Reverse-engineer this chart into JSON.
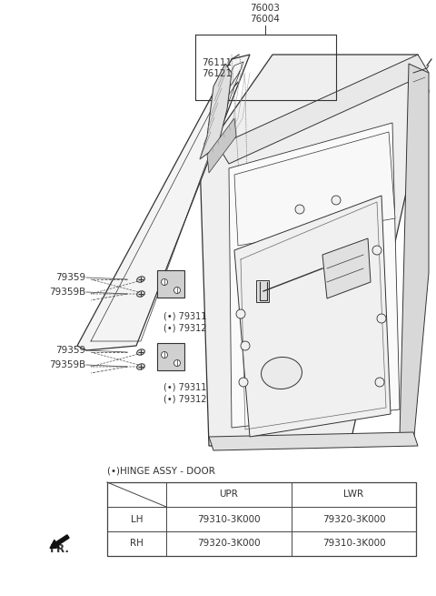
{
  "bg_color": "#ffffff",
  "title_part": "76003\n76004",
  "label_76111": "76111\n76121",
  "label_79359_top": "79359",
  "label_79359B_top": "79359B",
  "label_79311_top": "(•) 79311\n(•) 79312",
  "label_79359_bot": "79359",
  "label_79359B_bot": "79359B",
  "label_79311_bot": "(•) 79311\n(•) 79312",
  "hinge_label": "(•)HINGE ASSY - DOOR",
  "table_header_col1": "UPR",
  "table_header_col2": "LWR",
  "table_row1_label": "LH",
  "table_row1_col1": "79310-3K000",
  "table_row1_col2": "79320-3K000",
  "table_row2_label": "RH",
  "table_row2_col1": "79320-3K000",
  "table_row2_col2": "79310-3K000",
  "fr_label": "FR.",
  "line_color": "#333333",
  "table_line_color": "#444444",
  "text_color": "#333333"
}
